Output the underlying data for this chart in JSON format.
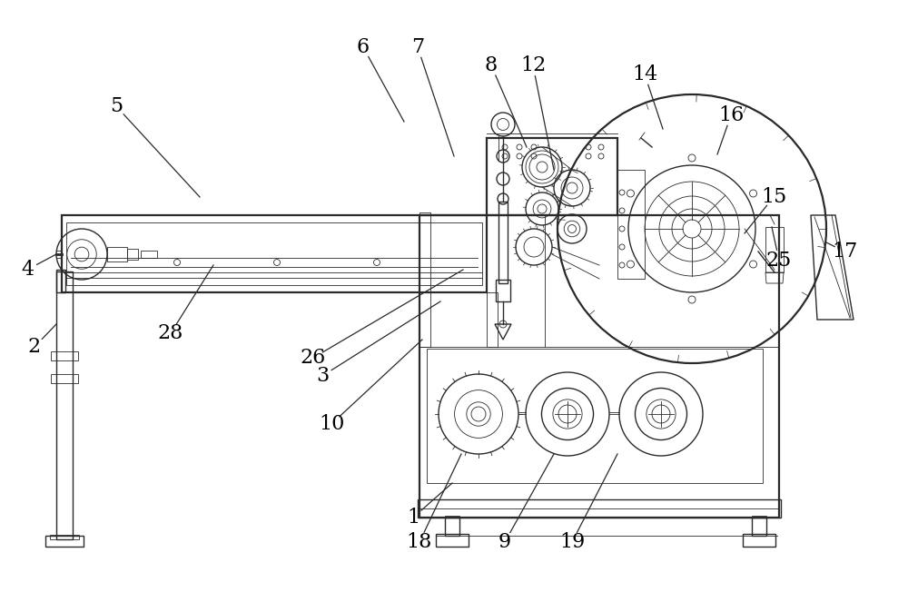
{
  "background_color": "#ffffff",
  "line_color": "#2a2a2a",
  "label_color": "#000000",
  "figsize": [
    10.0,
    6.52
  ],
  "dpi": 100
}
